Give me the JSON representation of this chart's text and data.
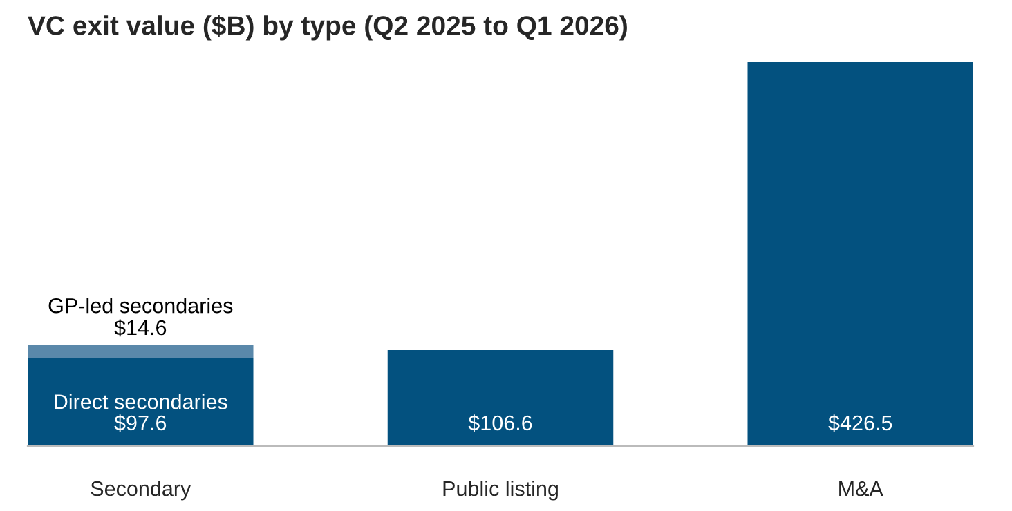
{
  "chart_data": {
    "type": "bar",
    "title": "VC exit value ($B) by type (Q2 2025 to Q1 2026)",
    "categories": [
      "Secondary",
      "Public listing",
      "M&A"
    ],
    "stacked": true,
    "ylim": [
      0,
      426.5
    ],
    "tick_labels": "x",
    "grid": false,
    "legend": false,
    "series": [
      {
        "name": "Direct secondaries",
        "color": "#03517f",
        "values": [
          97.6,
          106.6,
          426.5
        ],
        "value_labels": [
          "$97.6",
          "$106.6",
          "$426.5"
        ]
      },
      {
        "name": "GP-led secondaries",
        "color": "#5a88aa",
        "values": [
          14.6,
          null,
          null
        ],
        "value_labels": [
          "$14.6",
          null,
          null
        ]
      }
    ]
  }
}
